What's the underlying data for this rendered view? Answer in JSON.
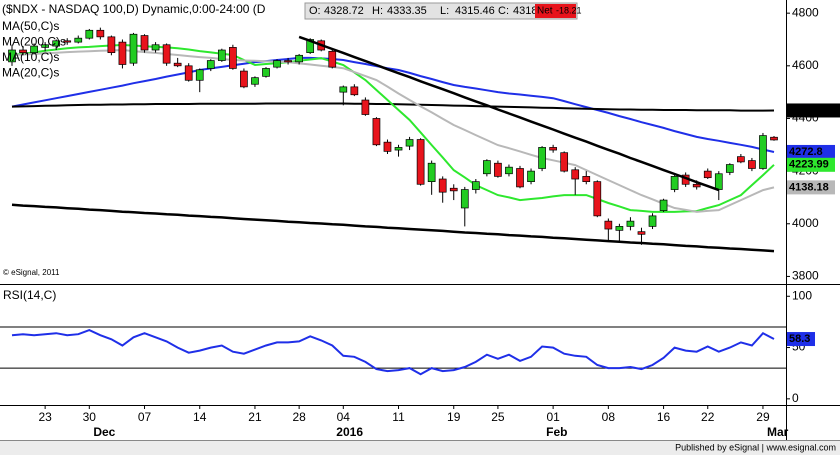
{
  "chart_data": [
    {
      "type": "candlestick",
      "title": "($NDX - NASDAQ 100,D) Dynamic,0:00-24:00 (D",
      "ohlc_labels": [
        "O:",
        "H:",
        "L:",
        "C:",
        "Net"
      ],
      "net_change": -18.21,
      "watermark": "© eSignal, 2011",
      "categories": [
        null,
        null,
        null,
        "23",
        null,
        null,
        null,
        "30",
        null,
        null,
        null,
        null,
        "07",
        null,
        null,
        null,
        null,
        "14",
        null,
        null,
        null,
        null,
        "21",
        null,
        null,
        null,
        "28",
        null,
        null,
        null,
        "04",
        null,
        null,
        null,
        null,
        "11",
        null,
        null,
        null,
        null,
        "19",
        null,
        null,
        null,
        "25",
        null,
        null,
        null,
        null,
        "01",
        null,
        null,
        null,
        null,
        "08",
        null,
        null,
        null,
        null,
        "16",
        null,
        null,
        null,
        "22",
        null,
        null,
        null,
        null,
        "29",
        null
      ],
      "months": [
        null,
        null,
        null,
        null,
        null,
        null,
        null,
        null,
        "Dec",
        null,
        null,
        null,
        null,
        null,
        null,
        null,
        null,
        null,
        null,
        null,
        null,
        null,
        null,
        null,
        null,
        null,
        null,
        null,
        null,
        null,
        "2016",
        null,
        null,
        null,
        null,
        null,
        null,
        null,
        null,
        null,
        null,
        null,
        null,
        null,
        null,
        null,
        null,
        null,
        null,
        "Feb",
        null,
        null,
        null,
        null,
        null,
        null,
        null,
        null,
        null,
        null,
        null,
        null,
        null,
        null,
        null,
        null,
        null,
        null,
        null,
        "Mar"
      ],
      "open": [
        4615,
        4660,
        4650,
        4670,
        4675,
        4695,
        4690,
        4705,
        4735,
        4710,
        4690,
        4610,
        4715,
        4660,
        4680,
        4610,
        4600,
        4545,
        4590,
        4620,
        4670,
        4580,
        4530,
        4560,
        4595,
        4620,
        4615,
        4650,
        4695,
        4655,
        4500,
        4520,
        4470,
        4400,
        4310,
        4280,
        4295,
        4320,
        4160,
        4170,
        4135,
        4060,
        4130,
        4190,
        4230,
        4190,
        4210,
        4160,
        4210,
        4290,
        4270,
        4205,
        4180,
        4160,
        4010,
        3975,
        3990,
        3970,
        3990,
        4050,
        4130,
        4185,
        4150,
        4200,
        4130,
        4195,
        4255,
        4240,
        4210,
        4328.72
      ],
      "high": [
        4680,
        4675,
        4685,
        4690,
        4700,
        4705,
        4715,
        4740,
        4745,
        4715,
        4700,
        4725,
        4720,
        4690,
        4685,
        4630,
        4610,
        4590,
        4625,
        4665,
        4680,
        4590,
        4560,
        4595,
        4625,
        4630,
        4645,
        4705,
        4700,
        4665,
        4525,
        4530,
        4480,
        4405,
        4320,
        4300,
        4330,
        4325,
        4240,
        4180,
        4150,
        4140,
        4170,
        4245,
        4240,
        4225,
        4220,
        4210,
        4295,
        4300,
        4275,
        4215,
        4200,
        4165,
        4020,
        4000,
        4025,
        3985,
        4040,
        4095,
        4185,
        4195,
        4165,
        4210,
        4200,
        4230,
        4265,
        4250,
        4345,
        4333.35
      ],
      "low": [
        4600,
        4640,
        4645,
        4655,
        4660,
        4680,
        4685,
        4700,
        4700,
        4640,
        4590,
        4600,
        4650,
        4650,
        4600,
        4595,
        4540,
        4500,
        4580,
        4615,
        4585,
        4515,
        4520,
        4555,
        4590,
        4605,
        4605,
        4645,
        4655,
        4590,
        4450,
        4485,
        4410,
        4295,
        4265,
        4255,
        4280,
        4145,
        4110,
        4080,
        4090,
        3990,
        4115,
        4180,
        4175,
        4180,
        4135,
        4150,
        4200,
        4270,
        4195,
        4110,
        4150,
        4025,
        3935,
        3930,
        3975,
        3920,
        3980,
        4045,
        4120,
        4140,
        4130,
        4170,
        4090,
        4185,
        4230,
        4200,
        4205,
        4315.46
      ],
      "close": [
        4660,
        4650,
        4675,
        4680,
        4695,
        4690,
        4705,
        4735,
        4710,
        4650,
        4605,
        4720,
        4660,
        4680,
        4610,
        4600,
        4545,
        4585,
        4620,
        4660,
        4590,
        4520,
        4555,
        4590,
        4620,
        4615,
        4640,
        4700,
        4660,
        4595,
        4520,
        4490,
        4415,
        4300,
        4275,
        4290,
        4320,
        4150,
        4230,
        4120,
        4125,
        4130,
        4160,
        4240,
        4180,
        4215,
        4140,
        4200,
        4290,
        4280,
        4200,
        4170,
        4160,
        4030,
        3980,
        3990,
        4010,
        3960,
        4030,
        4090,
        4180,
        4150,
        4140,
        4175,
        4190,
        4225,
        4235,
        4210,
        4335,
        4318.4
      ],
      "up_color": "#22cc22",
      "down_color": "#e8141c",
      "series": [
        {
          "name": "MA(50,C)s",
          "color": "#1f2fe8",
          "values": [
            4445,
            4453,
            4461,
            4469,
            4477,
            4485,
            4493,
            4501,
            4509,
            4517,
            4525,
            4534,
            4542,
            4550,
            4559,
            4567,
            4575,
            4584,
            4590,
            4596,
            4602,
            4608,
            4614,
            4618,
            4622,
            4626,
            4630,
            4630,
            4628,
            4626,
            4622,
            4614,
            4607,
            4599,
            4591,
            4584,
            4573,
            4561,
            4550,
            4538,
            4527,
            4520,
            4514,
            4507,
            4500,
            4495,
            4491,
            4486,
            4482,
            4477,
            4466,
            4454,
            4443,
            4432,
            4421,
            4409,
            4398,
            4386,
            4375,
            4364,
            4352,
            4341,
            4330,
            4322,
            4315,
            4307,
            4300,
            4292,
            4282,
            4272.8
          ]
        },
        {
          "name": "MA(200,C)s",
          "color": "#000000",
          "values": [
            4445,
            4446,
            4447,
            4448,
            4449,
            4450,
            4451,
            4452,
            4452,
            4453,
            4453,
            4454,
            4454,
            4455,
            4455,
            4455,
            4455,
            4456,
            4456,
            4456,
            4456,
            4456,
            4456,
            4457,
            4457,
            4457,
            4457,
            4457,
            4457,
            4457,
            4457,
            4456,
            4456,
            4455,
            4455,
            4454,
            4453,
            4452,
            4451,
            4450,
            4449,
            4448,
            4447,
            4446,
            4445,
            4444,
            4443,
            4442,
            4441,
            4440,
            4439,
            4438,
            4437,
            4436,
            4435,
            4434,
            4434,
            4433,
            4433,
            4432,
            4432,
            4432,
            4431,
            4431,
            4431,
            4431,
            4430,
            4430,
            4430,
            4430.38
          ]
        },
        {
          "name": "MA(10,C)s",
          "color": "#2ee82e",
          "values": [
            4641,
            4646,
            4651,
            4657,
            4662,
            4667,
            4670,
            4672,
            4675,
            4677,
            4679,
            4677,
            4674,
            4672,
            4670,
            4667,
            4662,
            4656,
            4651,
            4646,
            4641,
            4622,
            4603,
            4607,
            4610,
            4614,
            4619,
            4624,
            4629,
            4616,
            4603,
            4575,
            4546,
            4508,
            4470,
            4432,
            4394,
            4347,
            4299,
            4252,
            4204,
            4176,
            4147,
            4128,
            4109,
            4100,
            4090,
            4094,
            4098,
            4104,
            4109,
            4109,
            4109,
            4094,
            4079,
            4066,
            4052,
            4049,
            4045,
            4045,
            4045,
            4047,
            4048,
            4060,
            4071,
            4090,
            4109,
            4147,
            4185,
            4223.99
          ]
        },
        {
          "name": "MA(20,C)s",
          "color": "#b8b8b8",
          "values": [
            4641,
            4643,
            4645,
            4648,
            4650,
            4652,
            4654,
            4655,
            4657,
            4658,
            4660,
            4656,
            4652,
            4649,
            4645,
            4641,
            4637,
            4633,
            4630,
            4626,
            4622,
            4620,
            4619,
            4617,
            4616,
            4614,
            4609,
            4605,
            4600,
            4596,
            4591,
            4576,
            4561,
            4546,
            4521,
            4495,
            4470,
            4446,
            4423,
            4399,
            4375,
            4356,
            4337,
            4318,
            4299,
            4287,
            4275,
            4262,
            4250,
            4241,
            4232,
            4223,
            4204,
            4185,
            4166,
            4147,
            4128,
            4109,
            4093,
            4076,
            4060,
            4053,
            4045,
            4049,
            4052,
            4071,
            4090,
            4109,
            4128,
            4138.18
          ]
        }
      ],
      "trendlines": [
        {
          "color": "#000000",
          "values": [
            null,
            null,
            null,
            null,
            null,
            null,
            null,
            null,
            null,
            null,
            null,
            null,
            null,
            null,
            null,
            null,
            null,
            null,
            null,
            null,
            null,
            null,
            null,
            null,
            null,
            null,
            4710,
            4695,
            4679,
            4664,
            4649,
            4633,
            4618,
            4603,
            4587,
            4572,
            4557,
            4541,
            4526,
            4511,
            4496,
            4480,
            4465,
            4450,
            4434,
            4419,
            4404,
            4388,
            4373,
            4358,
            4342,
            4327,
            4312,
            4296,
            4281,
            4266,
            4250,
            4235,
            4220,
            4204,
            4189,
            4174,
            4158,
            4143,
            4128,
            null,
            null,
            null,
            null,
            null
          ]
        },
        {
          "color": "#000000",
          "values": [
            4072,
            4069,
            4067,
            4064,
            4062,
            4059,
            4057,
            4054,
            4052,
            4049,
            4046,
            4044,
            4041,
            4039,
            4036,
            4034,
            4031,
            4029,
            4026,
            4024,
            4021,
            4018,
            4016,
            4013,
            4011,
            4008,
            4006,
            4003,
            4001,
            3998,
            3996,
            3993,
            3990,
            3988,
            3985,
            3983,
            3980,
            3978,
            3975,
            3973,
            3970,
            3967,
            3965,
            3962,
            3960,
            3957,
            3955,
            3952,
            3950,
            3947,
            3945,
            3942,
            3939,
            3937,
            3934,
            3932,
            3929,
            3927,
            3924,
            3922,
            3919,
            3916,
            3914,
            3911,
            3909,
            3906,
            3904,
            3901,
            3899,
            3896
          ]
        }
      ],
      "ylim": [
        3775,
        4850
      ],
      "yticks": [
        3800,
        4000,
        4200,
        4400,
        4600,
        4800
      ],
      "grid": false
    },
    {
      "type": "line",
      "series": [
        {
          "name": "RSI(14,C)",
          "color": "#1f2fe8",
          "values": [
            62,
            63,
            62,
            63,
            64,
            62,
            63,
            67,
            62,
            58,
            52,
            60,
            64,
            60,
            56,
            50,
            45,
            47,
            50,
            52,
            46,
            44,
            48,
            52,
            55,
            55,
            56,
            61,
            57,
            52,
            42,
            41,
            36,
            29,
            27,
            28,
            30,
            24,
            30,
            27,
            28,
            31,
            36,
            43,
            39,
            43,
            37,
            41,
            51,
            50,
            44,
            42,
            41,
            33,
            30,
            30,
            31,
            29,
            33,
            40,
            50,
            47,
            46,
            51,
            46,
            50,
            55,
            52,
            64,
            58.3
          ]
        }
      ],
      "levels": [
        30,
        70
      ],
      "ylim": [
        -6,
        110
      ],
      "yticks": [
        0,
        50,
        100
      ],
      "grid": false
    }
  ],
  "footer": "Published by eSignal | www.esignal.com"
}
